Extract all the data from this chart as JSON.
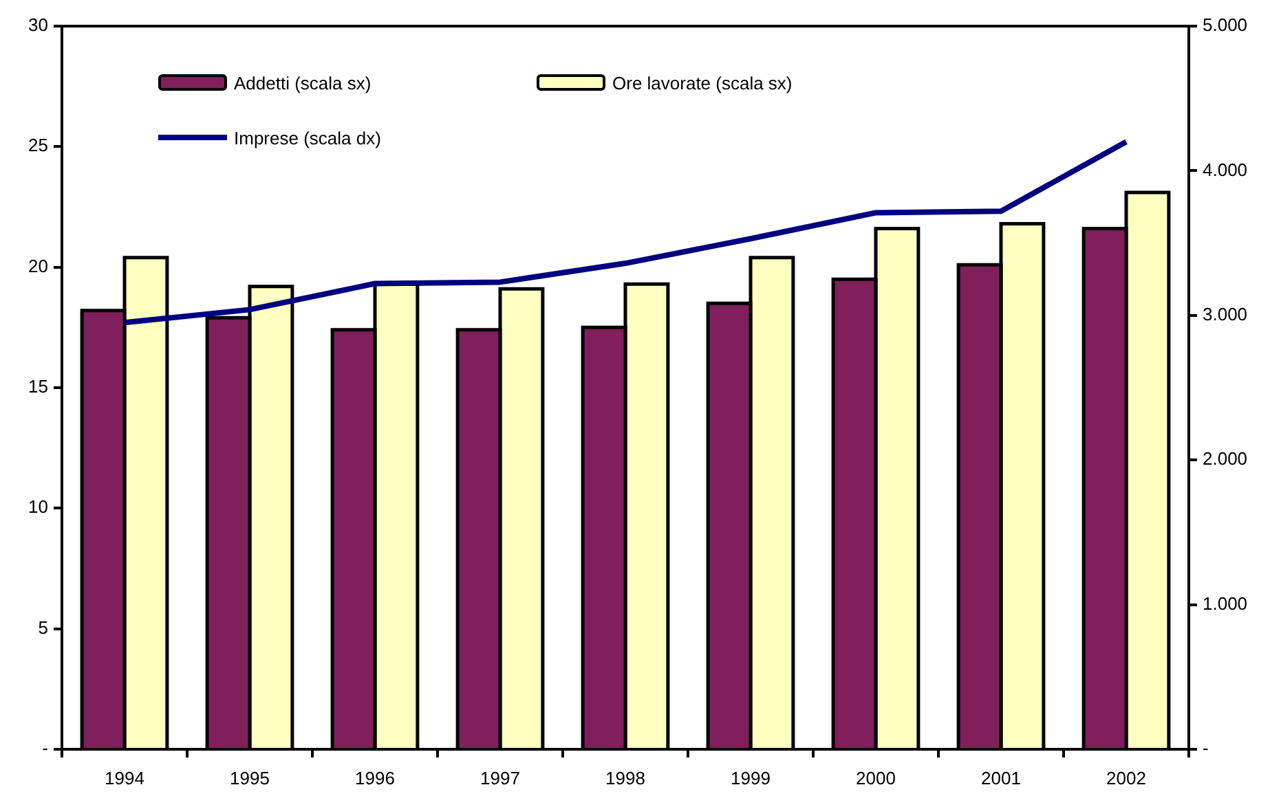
{
  "chart_data": {
    "type": "bar",
    "categories": [
      "1994",
      "1995",
      "1996",
      "1997",
      "1998",
      "1999",
      "2000",
      "2001",
      "2002"
    ],
    "series": [
      {
        "name": "Addetti (scala sx)",
        "color": "#801f5c",
        "values": [
          18.2,
          17.9,
          17.4,
          17.4,
          17.5,
          18.5,
          19.5,
          20.1,
          21.6
        ]
      },
      {
        "name": "Ore lavorate (scala sx)",
        "color": "#ffffc0",
        "values": [
          20.4,
          19.2,
          19.3,
          19.1,
          19.3,
          20.4,
          21.6,
          21.8,
          23.1
        ]
      },
      {
        "name": "Imprese (scala dx)",
        "type": "line",
        "axis": "y2",
        "color": "#000080",
        "values": [
          2950,
          3040,
          3220,
          3230,
          3360,
          3530,
          3710,
          3720,
          4200
        ]
      }
    ],
    "ylim": [
      0,
      30
    ],
    "yticks": [
      {
        "value": 0,
        "label": "-"
      },
      5,
      10,
      15,
      20,
      25,
      30
    ],
    "y2lim": [
      0,
      5000
    ],
    "y2ticks": [
      {
        "value": 0,
        "label": "-"
      },
      {
        "value": 1000,
        "label": "1.000"
      },
      {
        "value": 2000,
        "label": "2.000"
      },
      {
        "value": 3000,
        "label": "3.000"
      },
      {
        "value": 4000,
        "label": "4.000"
      },
      {
        "value": 5000,
        "label": "5.000"
      }
    ],
    "grid": false,
    "legend": "top left",
    "marker": "none",
    "line_style": "solid"
  }
}
